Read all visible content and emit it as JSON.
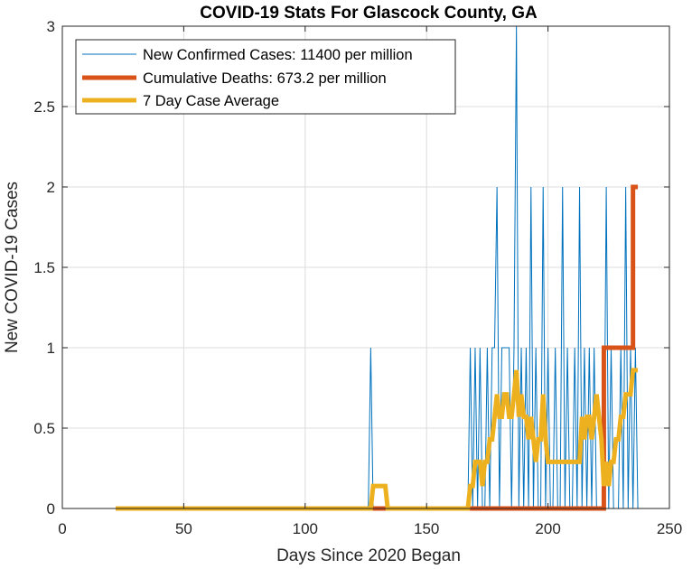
{
  "chart_data": {
    "type": "line",
    "title": "COVID-19 Stats For Glascock County, GA",
    "xlabel": "Days Since 2020 Began",
    "ylabel": "New COVID-19 Cases",
    "xlim": [
      0,
      250
    ],
    "ylim": [
      0,
      3
    ],
    "xticks": [
      0,
      50,
      100,
      150,
      200,
      250
    ],
    "yticks": [
      0,
      0.5,
      1,
      1.5,
      2,
      2.5,
      3
    ],
    "xtick_labels": [
      "0",
      "50",
      "100",
      "150",
      "200",
      "250"
    ],
    "ytick_labels": [
      "0",
      "0.5",
      "1",
      "1.5",
      "2",
      "2.5",
      "3"
    ],
    "grid": true,
    "legend_position": "top-left",
    "series": [
      {
        "name": "New Confirmed Cases: 11400 per million",
        "color": "#0072BD",
        "style": "thin",
        "x": [
          22,
          126,
          127,
          128,
          129,
          167,
          168,
          169,
          170,
          171,
          172,
          173,
          174,
          175,
          176,
          177,
          178,
          179,
          180,
          181,
          182,
          183,
          184,
          185,
          186,
          187,
          188,
          189,
          190,
          191,
          192,
          193,
          194,
          195,
          196,
          197,
          198,
          199,
          200,
          201,
          202,
          203,
          204,
          205,
          206,
          207,
          208,
          209,
          210,
          211,
          212,
          213,
          214,
          215,
          216,
          217,
          218,
          219,
          220,
          221,
          222,
          223,
          224,
          225,
          226,
          227,
          228,
          229,
          230,
          231,
          232,
          233,
          234,
          235,
          236,
          237
        ],
        "y": [
          0,
          0,
          1,
          0,
          0,
          0,
          1,
          0,
          1,
          0,
          1,
          0,
          0,
          1,
          0,
          1,
          1,
          2,
          0,
          1,
          1,
          1,
          1,
          0,
          1,
          3,
          0,
          1,
          0,
          1,
          0,
          2,
          0,
          1,
          0,
          0,
          2,
          0,
          1,
          0,
          0,
          1,
          0,
          0,
          2,
          0,
          1,
          0,
          0,
          1,
          0,
          2,
          0,
          1,
          0,
          1,
          0,
          1,
          0,
          0,
          0,
          0,
          2,
          0,
          1,
          0,
          0,
          0,
          1,
          0,
          2,
          0,
          1,
          0,
          1,
          0
        ]
      },
      {
        "name": "Cumulative Deaths: 673.2 per million",
        "color": "#D95319",
        "style": "thick-step",
        "x": [
          22,
          223,
          223,
          235,
          235,
          237
        ],
        "y": [
          0,
          0,
          1,
          1,
          2,
          2
        ]
      },
      {
        "name": "7 Day Case Average",
        "color": "#EDB120",
        "style": "thick",
        "x": [
          22,
          127,
          128,
          133,
          134,
          167,
          168,
          169,
          170,
          171,
          172,
          173,
          174,
          175,
          176,
          177,
          178,
          179,
          180,
          181,
          182,
          183,
          184,
          185,
          186,
          187,
          188,
          189,
          190,
          191,
          192,
          193,
          194,
          195,
          196,
          197,
          198,
          199,
          200,
          201,
          202,
          203,
          204,
          205,
          206,
          207,
          208,
          209,
          210,
          211,
          212,
          213,
          214,
          215,
          216,
          217,
          218,
          219,
          220,
          221,
          222,
          223,
          224,
          225,
          226,
          227,
          228,
          229,
          230,
          231,
          232,
          233,
          234,
          235,
          236,
          237
        ],
        "y": [
          0,
          0,
          0.14,
          0.14,
          0,
          0,
          0.14,
          0.14,
          0.29,
          0.29,
          0.29,
          0.14,
          0.29,
          0.29,
          0.43,
          0.43,
          0.57,
          0.71,
          0.57,
          0.57,
          0.71,
          0.71,
          0.57,
          0.57,
          0.71,
          0.86,
          0.57,
          0.71,
          0.57,
          0.57,
          0.43,
          0.57,
          0.43,
          0.29,
          0.43,
          0.43,
          0.71,
          0.43,
          0.29,
          0.29,
          0.29,
          0.29,
          0.29,
          0.29,
          0.29,
          0.29,
          0.29,
          0.29,
          0.29,
          0.29,
          0.29,
          0.29,
          0.57,
          0.43,
          0.57,
          0.57,
          0.43,
          0.57,
          0.71,
          0.57,
          0.43,
          0.14,
          0.29,
          0.14,
          0.29,
          0.29,
          0.43,
          0.43,
          0.57,
          0.57,
          0.71,
          0.71,
          0.71,
          0.86,
          0.86,
          0.86
        ]
      }
    ]
  }
}
